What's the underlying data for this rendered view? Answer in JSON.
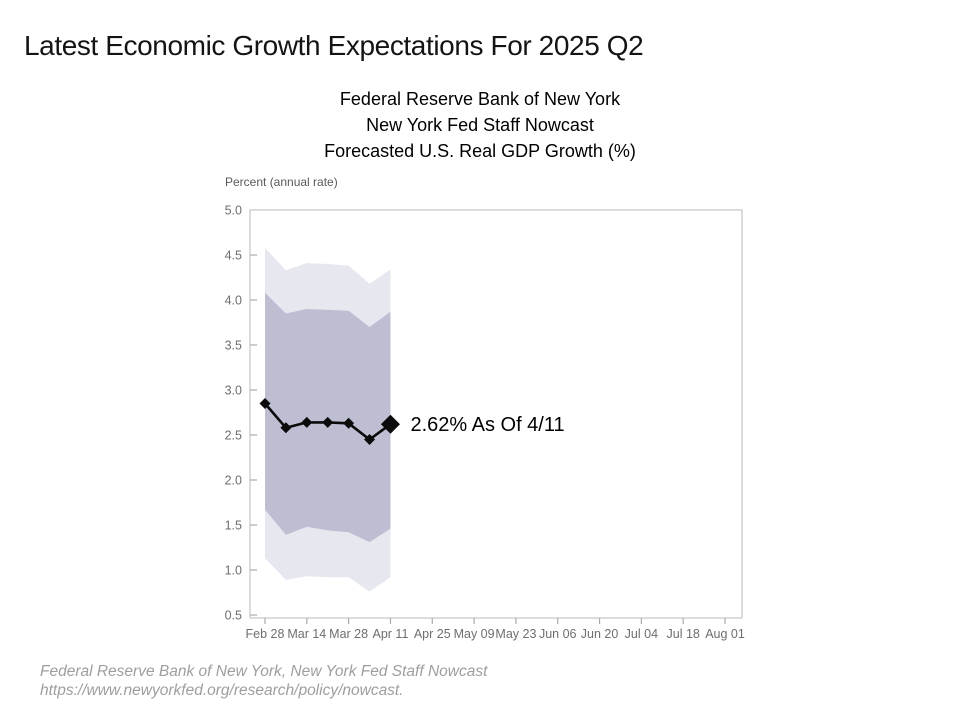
{
  "slide": {
    "title": "Latest Economic Growth Expectations For 2025 Q2",
    "footer_line1": "Federal Reserve Bank of New York, New York Fed Staff Nowcast",
    "footer_line2": "https://www.newyorkfed.org/research/policy/nowcast."
  },
  "chart_header": {
    "line1": "Federal Reserve Bank of New York",
    "line2": "New York Fed Staff Nowcast",
    "line3": "Forecasted U.S. Real GDP Growth (%)"
  },
  "chart_data": {
    "type": "line",
    "title": "New York Fed Staff Nowcast — Forecasted U.S. Real GDP Growth (%)",
    "ylabel": "Percent (annual rate)",
    "xlabel": "",
    "ylim": [
      0.5,
      5.0
    ],
    "ytick_step": 0.5,
    "ytick_labels": [
      "5.0",
      "4.5",
      "4.0",
      "3.5",
      "3.0",
      "2.5",
      "2.0",
      "1.5",
      "1.0",
      "0.5"
    ],
    "xtick_labels": [
      "Feb 28",
      "Mar 14",
      "Mar 28",
      "Apr 11",
      "Apr 25",
      "May 09",
      "May 23",
      "Jun 06",
      "Jun 20",
      "Jul 04",
      "Jul 18",
      "Aug 01"
    ],
    "grid": false,
    "legend": "none",
    "series": [
      {
        "name": "Nowcast",
        "point_dates": [
          "Feb 28",
          "Mar 07",
          "Mar 14",
          "Mar 21",
          "Mar 28",
          "Apr 04",
          "Apr 11"
        ],
        "x": [
          0,
          0.5,
          1,
          1.5,
          2,
          2.5,
          3
        ],
        "values": [
          2.85,
          2.58,
          2.64,
          2.64,
          2.63,
          2.45,
          2.62
        ]
      }
    ],
    "bands": [
      {
        "name": "outer-probability-band",
        "color": "#e7e7f0",
        "top": [
          4.58,
          4.33,
          4.41,
          4.4,
          4.38,
          4.18,
          4.34
        ],
        "bottom": [
          1.13,
          0.89,
          0.93,
          0.92,
          0.92,
          0.76,
          0.92
        ]
      },
      {
        "name": "inner-probability-band",
        "color": "#bdbed2",
        "top": [
          4.08,
          3.85,
          3.9,
          3.89,
          3.88,
          3.7,
          3.87
        ],
        "bottom": [
          1.67,
          1.39,
          1.48,
          1.44,
          1.42,
          1.31,
          1.46
        ]
      }
    ],
    "annotation": "2.62% As Of 4/11",
    "line_color": "#0b0b0b",
    "marker": "diamond",
    "colors": {
      "frame": "#c5c9cd",
      "tick": "#a6abb0",
      "tick_label": "#6e6e6e",
      "axis_title": "#595959",
      "annotation": "#000000"
    }
  }
}
